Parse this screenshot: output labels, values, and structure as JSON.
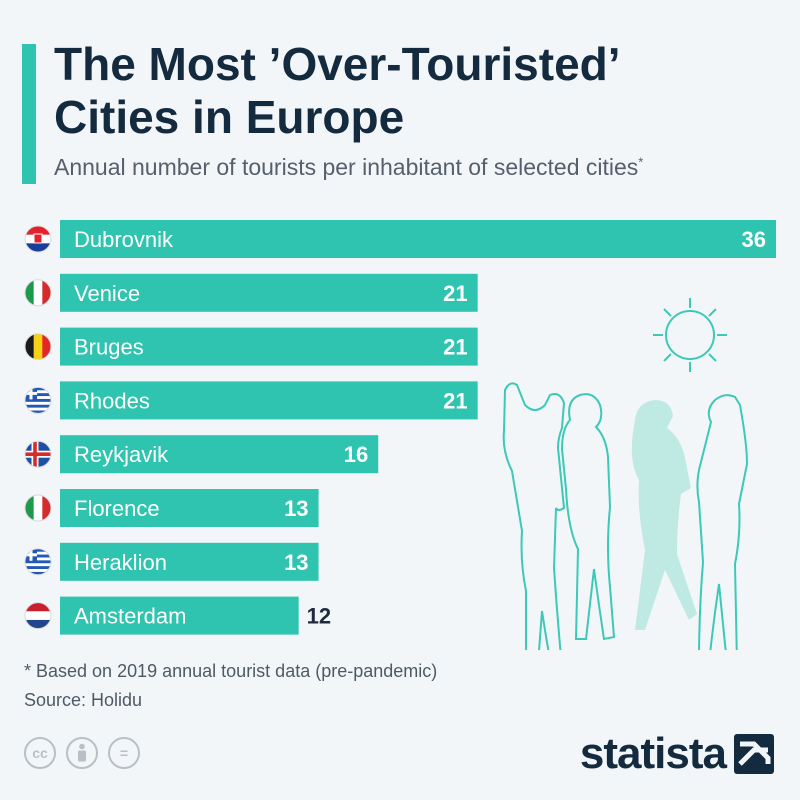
{
  "header": {
    "title_line1": "The Most ’Over-Touristed’",
    "title_line2": "Cities in Europe",
    "subtitle": "Annual number of tourists per inhabitant of selected cities",
    "subtitle_mark": "*"
  },
  "chart_data": {
    "type": "bar",
    "orientation": "horizontal",
    "categories": [
      "Dubrovnik",
      "Venice",
      "Bruges",
      "Rhodes",
      "Reykjavik",
      "Florence",
      "Heraklion",
      "Amsterdam"
    ],
    "values": [
      36,
      21,
      21,
      21,
      16,
      13,
      13,
      12
    ],
    "flags": [
      "croatia-flag-icon",
      "italy-flag-icon",
      "belgium-flag-icon",
      "greece-flag-icon",
      "iceland-flag-icon",
      "italy-flag-icon",
      "greece-flag-icon",
      "netherlands-flag-icon"
    ],
    "bar_color": "#2ec4b0",
    "xlim": [
      0,
      36
    ],
    "grid": false,
    "legend": "none"
  },
  "footer": {
    "footnote": "* Based on 2019 annual tourist data (pre-pandemic)",
    "source": "Source: Holidu",
    "license_icons": [
      "cc-icon",
      "attribution-icon",
      "no-derivatives-icon"
    ],
    "cc_label": "cc",
    "nd_label": "=",
    "brand": "statista"
  },
  "colors": {
    "accent": "#2ec4b0",
    "title": "#142a3f",
    "muted": "#55606c"
  }
}
